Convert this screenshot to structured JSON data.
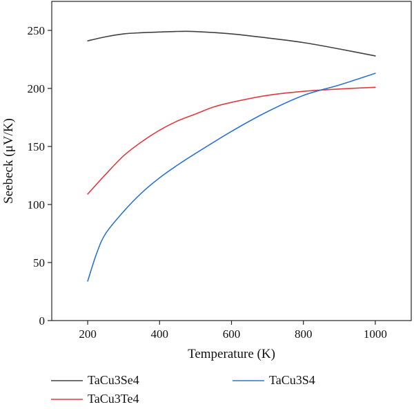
{
  "chart_data": {
    "type": "line",
    "title": "",
    "xlabel": "Temperature (K)",
    "ylabel": "Seebeck (μV/K)",
    "xlim": [
      100,
      1100
    ],
    "ylim": [
      0,
      275
    ],
    "xticks": [
      200,
      400,
      600,
      800,
      1000
    ],
    "yticks": [
      0,
      50,
      100,
      150,
      200,
      250
    ],
    "grid": false,
    "legend_position": "bottom",
    "series": [
      {
        "name": "TaCu3Se4",
        "color": "#404040",
        "x": [
          200,
          250,
          300,
          350,
          400,
          450,
          500,
          600,
          700,
          800,
          900,
          1000
        ],
        "y": [
          241,
          244.5,
          247,
          248,
          248.6,
          249.1,
          249,
          247,
          243.5,
          239.5,
          234,
          228
        ]
      },
      {
        "name": "TaCu3Te4",
        "color": "#e0393e",
        "x": [
          200,
          250,
          300,
          350,
          400,
          450,
          500,
          550,
          600,
          700,
          800,
          900,
          1000
        ],
        "y": [
          109,
          126,
          142,
          154,
          164,
          172,
          178,
          184,
          188,
          194,
          197.5,
          199.5,
          201
        ]
      },
      {
        "name": "TaCu3S4",
        "color": "#2a73d0",
        "x": [
          200,
          225,
          250,
          300,
          350,
          400,
          450,
          500,
          600,
          700,
          800,
          900,
          1000
        ],
        "y": [
          34,
          58,
          75,
          94,
          110,
          123,
          134,
          144,
          163,
          180,
          194,
          203,
          213
        ]
      }
    ]
  }
}
